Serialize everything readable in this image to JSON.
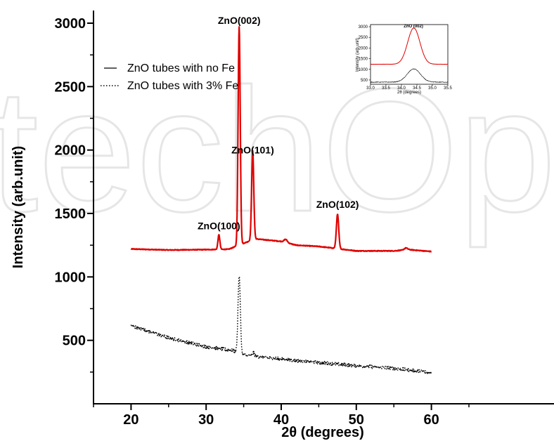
{
  "chart_data": {
    "type": "line",
    "watermark": "techOpen",
    "xlabel": "2θ (degrees)",
    "ylabel": "Intensity (arb.unit)",
    "xlim": [
      15,
      65
    ],
    "ylim": [
      0,
      3100
    ],
    "xticks": [
      20,
      30,
      40,
      50,
      60
    ],
    "yticks": [
      500,
      1000,
      1500,
      2000,
      2500,
      3000
    ],
    "grid": false,
    "legend_position": "top-left",
    "series": [
      {
        "name": "ZnO tubes with no Fe",
        "color": "#e00000",
        "style": "solid",
        "baseline": [
          [
            20,
            1220
          ],
          [
            25,
            1212
          ],
          [
            30,
            1215
          ],
          [
            33,
            1218
          ],
          [
            36.5,
            1300
          ],
          [
            40,
            1280
          ],
          [
            42,
            1250
          ],
          [
            45,
            1240
          ],
          [
            46.5,
            1230
          ],
          [
            50,
            1205
          ],
          [
            55,
            1205
          ],
          [
            57,
            1215
          ],
          [
            60,
            1200
          ]
        ],
        "peaks": [
          {
            "center": 31.7,
            "height": 115,
            "width": 0.18
          },
          {
            "center": 34.4,
            "height": 1720,
            "width": 0.2
          },
          {
            "center": 36.2,
            "height": 700,
            "width": 0.2
          },
          {
            "center": 40.6,
            "height": 25,
            "width": 0.3
          },
          {
            "center": 47.5,
            "height": 270,
            "width": 0.22
          },
          {
            "center": 56.6,
            "height": 15,
            "width": 0.3
          }
        ]
      },
      {
        "name": "ZnO tubes with 3% Fe",
        "color": "#000000",
        "style": "dotted",
        "baseline": [
          [
            20,
            615
          ],
          [
            25,
            520
          ],
          [
            30,
            450
          ],
          [
            33.5,
            420
          ],
          [
            35,
            385
          ],
          [
            38,
            365
          ],
          [
            42,
            340
          ],
          [
            46,
            320
          ],
          [
            50,
            300
          ],
          [
            55,
            280
          ],
          [
            60,
            245
          ]
        ],
        "peaks": [
          {
            "center": 34.4,
            "height": 610,
            "width": 0.22
          },
          {
            "center": 36.3,
            "height": 25,
            "width": 0.2
          },
          {
            "center": 21.6,
            "height": 30,
            "width": 0.05
          }
        ]
      }
    ],
    "annotations": [
      {
        "text": "ZnO(100)",
        "x": 31.7,
        "y": 1330
      },
      {
        "text": "ZnO(002)",
        "x": 34.4,
        "y": 2950
      },
      {
        "text": "ZnO(101)",
        "x": 36.2,
        "y": 1930
      },
      {
        "text": "ZnO(102)",
        "x": 47.5,
        "y": 1500
      }
    ],
    "inset": {
      "title": "ZnO (002)",
      "ylabel": "Intensity (arb.unit)",
      "xlabel": "2θ (degrees)",
      "xlim": [
        33.0,
        35.5
      ],
      "ylim": [
        300,
        3100
      ],
      "xticks": [
        "33.0",
        "33.5",
        "34.0",
        "34.5",
        "35.0",
        "35.5"
      ],
      "yticks": [
        "500",
        "1000",
        "1500",
        "2000",
        "2500",
        "3000"
      ],
      "series": [
        {
          "color": "#e00000",
          "baseline": 1240,
          "peak_center": 34.4,
          "peak_height": 1700,
          "peak_width": 0.28
        },
        {
          "color": "#000000",
          "baseline": 400,
          "peak_center": 34.4,
          "peak_height": 620,
          "peak_width": 0.3
        }
      ]
    }
  }
}
